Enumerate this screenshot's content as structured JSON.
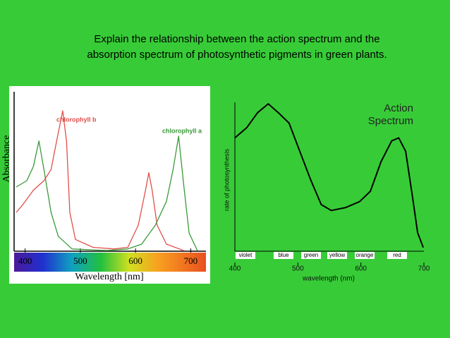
{
  "slide": {
    "title_lines": [
      "Explain the relationship between the action spectrum and the",
      "absorption spectrum of photosynthetic pigments in green plants."
    ]
  },
  "chart_data": [
    {
      "type": "line",
      "xlabel": "Wavelength [nm]",
      "ylabel": "Absorbance",
      "xlim": [
        380,
        725
      ],
      "ylim": [
        0,
        1
      ],
      "xticks": [
        400,
        500,
        600,
        700
      ],
      "series": [
        {
          "name": "chlorophyll b",
          "color": "#e0504a",
          "x": [
            384,
            396,
            415,
            434,
            447,
            457,
            468,
            475,
            481,
            491,
            523,
            561,
            586,
            605,
            618,
            624,
            630,
            639,
            656,
            687
          ],
          "values": [
            0.24,
            0.29,
            0.38,
            0.44,
            0.51,
            0.69,
            0.88,
            0.69,
            0.24,
            0.07,
            0.02,
            0.01,
            0.02,
            0.16,
            0.38,
            0.49,
            0.38,
            0.16,
            0.04,
            0
          ]
        },
        {
          "name": "chlorophyll a",
          "color": "#3a9a3a",
          "x": [
            384,
            403,
            415,
            425,
            434,
            447,
            460,
            485,
            548,
            586,
            611,
            636,
            656,
            668,
            678,
            687,
            697,
            712
          ],
          "values": [
            0.4,
            0.44,
            0.53,
            0.69,
            0.51,
            0.24,
            0.09,
            0.01,
            0,
            0.01,
            0.04,
            0.16,
            0.31,
            0.51,
            0.72,
            0.42,
            0.11,
            0
          ]
        }
      ]
    },
    {
      "type": "line",
      "title": "Action Spectrum",
      "xlabel": "wavelength (nm)",
      "ylabel": "rate of photosynthesis",
      "xlim": [
        400,
        700
      ],
      "ylim": [
        0,
        1
      ],
      "xticks": [
        400,
        500,
        600,
        700
      ],
      "bands": [
        "violet",
        "blue",
        "green",
        "yellow",
        "orange",
        "red"
      ],
      "color": "#000000",
      "x": [
        400,
        419,
        436,
        453,
        469,
        486,
        503,
        520,
        537,
        553,
        576,
        598,
        615,
        632,
        649,
        660,
        671,
        682,
        690,
        699
      ],
      "values": [
        0.76,
        0.83,
        0.93,
        0.99,
        0.93,
        0.86,
        0.67,
        0.48,
        0.31,
        0.27,
        0.29,
        0.33,
        0.4,
        0.6,
        0.74,
        0.76,
        0.67,
        0.36,
        0.12,
        0.02
      ]
    }
  ]
}
